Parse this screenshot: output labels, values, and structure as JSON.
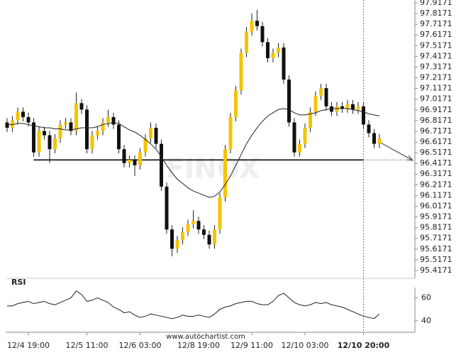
{
  "chart_data": {
    "type": "candlestick",
    "watermark": "FINOX",
    "footer": "www.autochartist.com",
    "categories": [
      null,
      null,
      null,
      null,
      "12/4 19:00",
      null,
      null,
      null,
      null,
      null,
      null,
      null,
      null,
      null,
      null,
      "12/5 11:00",
      null,
      null,
      null,
      null,
      null,
      null,
      null,
      null,
      null,
      "12/6 03:00",
      null,
      null,
      null,
      null,
      null,
      null,
      null,
      null,
      null,
      null,
      "12/8 19:00",
      null,
      null,
      null,
      null,
      null,
      null,
      null,
      null,
      null,
      "12/9 11:00",
      null,
      null,
      null,
      null,
      null,
      null,
      null,
      null,
      null,
      "12/10 03:00",
      null,
      null,
      null,
      null,
      null,
      null,
      null,
      null,
      null,
      null,
      "12/10 20:00",
      null,
      null,
      null
    ],
    "open": [
      96.8,
      96.75,
      96.82,
      96.9,
      96.85,
      96.8,
      96.52,
      96.72,
      96.68,
      96.55,
      96.65,
      96.78,
      96.8,
      96.72,
      96.98,
      96.92,
      96.55,
      96.68,
      96.72,
      96.8,
      96.85,
      96.78,
      96.55,
      96.42,
      96.45,
      96.4,
      96.52,
      96.65,
      96.75,
      96.6,
      96.2,
      95.8,
      95.62,
      95.7,
      95.78,
      95.85,
      95.88,
      95.8,
      95.75,
      95.66,
      95.8,
      96.1,
      96.55,
      96.85,
      97.1,
      97.45,
      97.65,
      97.75,
      97.7,
      97.55,
      97.4,
      97.45,
      97.5,
      97.2,
      96.8,
      96.52,
      96.6,
      96.75,
      96.9,
      97.05,
      97.12,
      96.95,
      96.9,
      96.95,
      96.93,
      96.97,
      96.92,
      96.95,
      96.78,
      96.7,
      96.6
    ],
    "high": [
      96.84,
      96.86,
      96.94,
      96.94,
      96.89,
      96.84,
      96.76,
      96.76,
      96.72,
      96.69,
      96.82,
      96.84,
      96.84,
      97.08,
      97.02,
      96.96,
      96.72,
      96.76,
      96.84,
      96.92,
      96.89,
      96.82,
      96.59,
      96.49,
      96.49,
      96.56,
      96.69,
      96.8,
      96.79,
      96.64,
      96.24,
      95.84,
      95.74,
      95.82,
      95.89,
      95.98,
      95.92,
      95.84,
      95.79,
      95.84,
      96.14,
      96.59,
      96.89,
      97.14,
      97.49,
      97.69,
      97.82,
      97.85,
      97.74,
      97.59,
      97.49,
      97.54,
      97.54,
      97.24,
      96.84,
      96.64,
      96.79,
      96.94,
      97.09,
      97.16,
      97.16,
      96.99,
      96.99,
      96.99,
      97.01,
      97.01,
      96.99,
      96.99,
      96.82,
      96.74,
      96.69
    ],
    "low": [
      96.71,
      96.71,
      96.78,
      96.81,
      96.76,
      96.48,
      96.48,
      96.64,
      96.42,
      96.51,
      96.61,
      96.74,
      96.68,
      96.68,
      96.88,
      96.51,
      96.51,
      96.64,
      96.68,
      96.76,
      96.74,
      96.51,
      96.38,
      96.38,
      96.3,
      96.36,
      96.48,
      96.61,
      96.56,
      96.16,
      95.76,
      95.55,
      95.58,
      95.66,
      95.74,
      95.81,
      95.76,
      95.71,
      95.62,
      95.62,
      95.76,
      96.06,
      96.51,
      96.81,
      97.06,
      97.41,
      97.61,
      97.66,
      97.51,
      97.36,
      97.36,
      97.41,
      97.16,
      96.76,
      96.48,
      96.48,
      96.56,
      96.71,
      96.86,
      97.01,
      96.91,
      96.86,
      96.86,
      96.89,
      96.89,
      96.88,
      96.88,
      96.74,
      96.66,
      96.56,
      96.56
    ],
    "close": [
      96.75,
      96.82,
      96.9,
      96.85,
      96.8,
      96.52,
      96.72,
      96.68,
      96.55,
      96.65,
      96.78,
      96.8,
      96.72,
      96.98,
      96.92,
      96.55,
      96.68,
      96.72,
      96.8,
      96.85,
      96.78,
      96.55,
      96.42,
      96.45,
      96.4,
      96.52,
      96.65,
      96.75,
      96.6,
      96.2,
      95.8,
      95.62,
      95.7,
      95.78,
      95.85,
      95.88,
      95.8,
      95.75,
      95.66,
      95.8,
      96.1,
      96.55,
      96.85,
      97.1,
      97.45,
      97.65,
      97.75,
      97.7,
      97.55,
      97.4,
      97.45,
      97.5,
      97.2,
      96.8,
      96.52,
      96.6,
      96.75,
      96.9,
      97.05,
      97.12,
      96.95,
      96.9,
      96.95,
      96.93,
      96.97,
      96.92,
      96.95,
      96.78,
      96.7,
      96.6,
      96.65
    ],
    "up_color": "#f5c400",
    "down_color": "#111111",
    "moving_average": {
      "color": "#222222",
      "values": [
        96.78,
        96.78,
        96.79,
        96.79,
        96.78,
        96.77,
        96.76,
        96.75,
        96.75,
        96.74,
        96.74,
        96.73,
        96.73,
        96.74,
        96.75,
        96.75,
        96.75,
        96.76,
        96.78,
        96.79,
        96.8,
        96.79,
        96.76,
        96.73,
        96.71,
        96.68,
        96.64,
        96.6,
        96.55,
        96.48,
        96.4,
        96.33,
        96.27,
        96.23,
        96.19,
        96.16,
        96.14,
        96.12,
        96.1,
        96.11,
        96.15,
        96.22,
        96.3,
        96.4,
        96.5,
        96.6,
        96.68,
        96.75,
        96.81,
        96.86,
        96.89,
        96.92,
        96.93,
        96.92,
        96.89,
        96.87,
        96.87,
        96.88,
        96.89,
        96.91,
        96.92,
        96.93,
        96.93,
        96.93,
        96.93,
        96.92,
        96.91,
        96.9,
        96.88,
        96.87,
        96.86
      ]
    },
    "support_level": 96.45,
    "ylim": [
      95.357,
      97.9436
    ],
    "yticks": [
      97.9171,
      97.8171,
      97.7171,
      97.6171,
      97.5171,
      97.4171,
      97.3171,
      97.2171,
      97.1171,
      97.0171,
      96.9171,
      96.8171,
      96.7171,
      96.6171,
      96.5171,
      96.4171,
      96.3171,
      96.2171,
      96.1171,
      96.0171,
      95.9171,
      95.8171,
      95.7171,
      95.6171,
      95.5171,
      95.4171
    ],
    "rsi": {
      "label": "RSI",
      "color": "#222222",
      "ylim": [
        35,
        69
      ],
      "yticks": [
        60,
        40
      ],
      "values": [
        53,
        53,
        55,
        56,
        57,
        55,
        56,
        57,
        55,
        54,
        56,
        58,
        60,
        66,
        63,
        57,
        58,
        60,
        58,
        56,
        52,
        50,
        47,
        48,
        45,
        43,
        44,
        46,
        45,
        44,
        43,
        42,
        43,
        45,
        44,
        44,
        45,
        44,
        43,
        46,
        50,
        52,
        53,
        55,
        56,
        57,
        57,
        55,
        54,
        54,
        57,
        62,
        64,
        60,
        56,
        54,
        53,
        54,
        56,
        55,
        56,
        54,
        53,
        52,
        50,
        48,
        46,
        44,
        43,
        42,
        46
      ]
    }
  }
}
